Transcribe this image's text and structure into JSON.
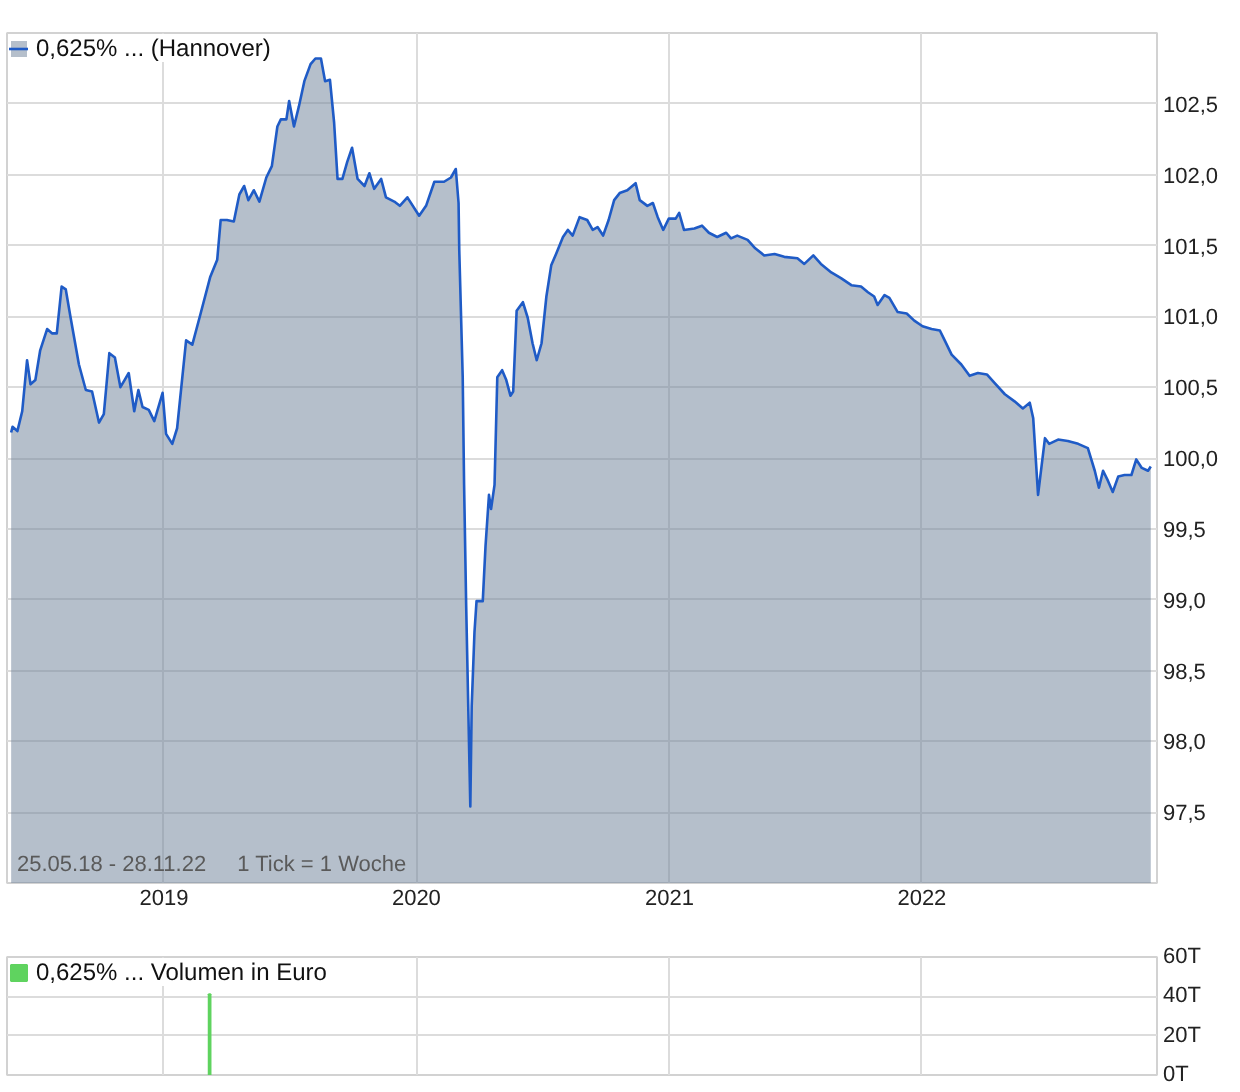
{
  "chart_data": [
    {
      "type": "area",
      "x": [
        "2018-05-25",
        "2018-05-27",
        "2018-06-03",
        "2018-06-10",
        "2018-06-17",
        "2018-06-22",
        "2018-06-29",
        "2018-07-06",
        "2018-07-16",
        "2018-07-23",
        "2018-07-30",
        "2018-08-06",
        "2018-08-12",
        "2018-08-19",
        "2018-08-31",
        "2018-09-10",
        "2018-09-19",
        "2018-09-29",
        "2018-10-06",
        "2018-10-14",
        "2018-10-22",
        "2018-10-30",
        "2018-11-05",
        "2018-11-11",
        "2018-11-19",
        "2018-11-25",
        "2018-12-01",
        "2018-12-10",
        "2018-12-18",
        "2018-12-30",
        "2019-01-04",
        "2019-01-13",
        "2019-01-20",
        "2019-02-02",
        "2019-02-11",
        "2019-02-23",
        "2019-03-09",
        "2019-03-19",
        "2019-03-24",
        "2019-04-02",
        "2019-04-12",
        "2019-04-20",
        "2019-04-27",
        "2019-05-03",
        "2019-05-11",
        "2019-05-19",
        "2019-05-29",
        "2019-06-06",
        "2019-06-14",
        "2019-06-19",
        "2019-06-27",
        "2019-07-01",
        "2019-07-08",
        "2019-07-15",
        "2019-07-23",
        "2019-08-01",
        "2019-08-08",
        "2019-08-16",
        "2019-08-22",
        "2019-08-29",
        "2019-09-04",
        "2019-09-09",
        "2019-09-16",
        "2019-09-23",
        "2019-09-30",
        "2019-10-08",
        "2019-10-18",
        "2019-10-25",
        "2019-11-01",
        "2019-11-11",
        "2019-11-18",
        "2019-11-30",
        "2019-12-08",
        "2019-12-19",
        "2020-01-05",
        "2020-01-15",
        "2020-01-27",
        "2020-02-10",
        "2020-02-20",
        "2020-02-27",
        "2020-03-02",
        "2020-03-03",
        "2020-03-08",
        "2020-03-10",
        "2020-03-13",
        "2020-03-17",
        "2020-03-19",
        "2020-03-21",
        "2020-03-25",
        "2020-03-28",
        "2020-04-06",
        "2020-04-10",
        "2020-04-15",
        "2020-04-18",
        "2020-04-23",
        "2020-04-27",
        "2020-05-04",
        "2020-05-10",
        "2020-05-16",
        "2020-05-20",
        "2020-05-25",
        "2020-06-03",
        "2020-06-10",
        "2020-06-17",
        "2020-06-23",
        "2020-06-30",
        "2020-07-07",
        "2020-07-14",
        "2020-07-21",
        "2020-07-31",
        "2020-08-07",
        "2020-08-14",
        "2020-08-24",
        "2020-09-04",
        "2020-09-12",
        "2020-09-19",
        "2020-09-27",
        "2020-10-05",
        "2020-10-13",
        "2020-10-21",
        "2020-11-01",
        "2020-11-13",
        "2020-11-19",
        "2020-11-30",
        "2020-12-08",
        "2020-12-15",
        "2020-12-23",
        "2020-12-31",
        "2021-01-10",
        "2021-01-15",
        "2021-01-22",
        "2021-02-06",
        "2021-02-17",
        "2021-02-27",
        "2021-03-11",
        "2021-03-24",
        "2021-03-31",
        "2021-04-09",
        "2021-04-24",
        "2021-05-05",
        "2021-05-18",
        "2021-06-02",
        "2021-06-16",
        "2021-07-05",
        "2021-07-15",
        "2021-07-28",
        "2021-08-08",
        "2021-08-23",
        "2021-09-06",
        "2021-09-21",
        "2021-10-05",
        "2021-10-15",
        "2021-10-24",
        "2021-10-29",
        "2021-11-08",
        "2021-11-15",
        "2021-11-27",
        "2021-12-10",
        "2021-12-21",
        "2022-01-02",
        "2022-01-15",
        "2022-01-27",
        "2022-02-03",
        "2022-02-13",
        "2022-02-27",
        "2022-03-11",
        "2022-03-23",
        "2022-04-05",
        "2022-04-16",
        "2022-05-01",
        "2022-05-15",
        "2022-05-27",
        "2022-06-06",
        "2022-06-11",
        "2022-06-18",
        "2022-06-28",
        "2022-07-04",
        "2022-07-17",
        "2022-07-31",
        "2022-08-15",
        "2022-08-29",
        "2022-09-08",
        "2022-09-14",
        "2022-09-20",
        "2022-09-27",
        "2022-10-04",
        "2022-10-12",
        "2022-10-21",
        "2022-10-31",
        "2022-11-07",
        "2022-11-15",
        "2022-11-24",
        "2022-11-28"
      ],
      "series": [
        {
          "name": "0,625% ... (Hannover)",
          "color": "#1f5bc6",
          "values": [
            100.18,
            100.22,
            100.19,
            100.33,
            100.69,
            100.52,
            100.55,
            100.76,
            100.91,
            100.88,
            100.88,
            101.21,
            101.19,
            100.99,
            100.66,
            100.48,
            100.47,
            100.25,
            100.31,
            100.74,
            100.71,
            100.5,
            100.55,
            100.6,
            100.33,
            100.48,
            100.36,
            100.34,
            100.26,
            100.46,
            100.17,
            100.1,
            100.21,
            100.83,
            100.8,
            101.02,
            101.28,
            101.4,
            101.68,
            101.68,
            101.67,
            101.86,
            101.92,
            101.82,
            101.89,
            101.81,
            101.98,
            102.06,
            102.34,
            102.39,
            102.39,
            102.52,
            102.34,
            102.48,
            102.66,
            102.78,
            102.82,
            102.82,
            102.66,
            102.67,
            102.37,
            101.97,
            101.97,
            102.09,
            102.19,
            101.97,
            101.92,
            102.01,
            101.9,
            101.97,
            101.84,
            101.81,
            101.78,
            101.84,
            101.71,
            101.78,
            101.95,
            101.95,
            101.98,
            102.04,
            101.8,
            101.47,
            100.57,
            99.81,
            98.96,
            98.01,
            97.54,
            98.25,
            98.77,
            98.99,
            98.99,
            99.38,
            99.74,
            99.64,
            99.81,
            100.57,
            100.62,
            100.55,
            100.44,
            100.47,
            101.04,
            101.1,
            100.99,
            100.81,
            100.69,
            100.81,
            101.14,
            101.36,
            101.44,
            101.56,
            101.61,
            101.57,
            101.7,
            101.68,
            101.61,
            101.63,
            101.57,
            101.68,
            101.82,
            101.87,
            101.89,
            101.94,
            101.82,
            101.78,
            101.8,
            101.7,
            101.61,
            101.69,
            101.69,
            101.73,
            101.61,
            101.62,
            101.64,
            101.59,
            101.56,
            101.59,
            101.55,
            101.57,
            101.54,
            101.48,
            101.43,
            101.44,
            101.42,
            101.41,
            101.37,
            101.43,
            101.37,
            101.31,
            101.27,
            101.22,
            101.21,
            101.17,
            101.14,
            101.08,
            101.15,
            101.13,
            101.03,
            101.02,
            100.97,
            100.93,
            100.91,
            100.9,
            100.83,
            100.73,
            100.66,
            100.58,
            100.6,
            100.59,
            100.53,
            100.45,
            100.4,
            100.35,
            100.39,
            100.28,
            99.74,
            100.14,
            100.1,
            100.13,
            100.12,
            100.1,
            100.07,
            99.91,
            99.79,
            99.91,
            99.84,
            99.76,
            99.87,
            99.88,
            99.88,
            99.99,
            99.93,
            99.91,
            99.94
          ]
        }
      ],
      "xlim": [
        "2018-05-19",
        "2022-12-07"
      ],
      "xticks": [
        {
          "value": "2019-01-01",
          "label": "2019"
        },
        {
          "value": "2020-01-01",
          "label": "2020"
        },
        {
          "value": "2021-01-01",
          "label": "2021"
        },
        {
          "value": "2022-01-01",
          "label": "2022"
        }
      ],
      "ylim": [
        97.0,
        103.0
      ],
      "yticks": [
        {
          "value": 97.5,
          "label": "97,5"
        },
        {
          "value": 98.0,
          "label": "98,0"
        },
        {
          "value": 98.5,
          "label": "98,5"
        },
        {
          "value": 99.0,
          "label": "99,0"
        },
        {
          "value": 99.5,
          "label": "99,5"
        },
        {
          "value": 100.0,
          "label": "100,0"
        },
        {
          "value": 100.5,
          "label": "100,5"
        },
        {
          "value": 101.0,
          "label": "101,0"
        },
        {
          "value": 101.5,
          "label": "101,5"
        },
        {
          "value": 102.0,
          "label": "102,0"
        },
        {
          "value": 102.5,
          "label": "102,5"
        }
      ],
      "grid": true,
      "legend": "top left",
      "annotations": [
        "25.05.18 - 28.11.22",
        "1 Tick = 1 Woche"
      ]
    },
    {
      "type": "bar",
      "x": [
        "2019-03-08"
      ],
      "series": [
        {
          "name": "0,625% ... Volumen in Euro",
          "color": "#5fd35f",
          "values": [
            41
          ]
        }
      ],
      "xlim": [
        "2018-05-19",
        "2022-12-07"
      ],
      "xticks": [
        {
          "value": "2019-01-01",
          "label": null
        },
        {
          "value": "2020-01-01",
          "label": null
        },
        {
          "value": "2021-01-01",
          "label": null
        },
        {
          "value": "2022-01-01",
          "label": null
        }
      ],
      "ylim": [
        0,
        60
      ],
      "yticks": [
        {
          "value": 0,
          "label": "0T"
        },
        {
          "value": 20,
          "label": "20T"
        },
        {
          "value": 40,
          "label": "40T"
        },
        {
          "value": 60,
          "label": "60T"
        }
      ],
      "grid": true,
      "legend": "top left",
      "tick_labels": "y"
    }
  ]
}
